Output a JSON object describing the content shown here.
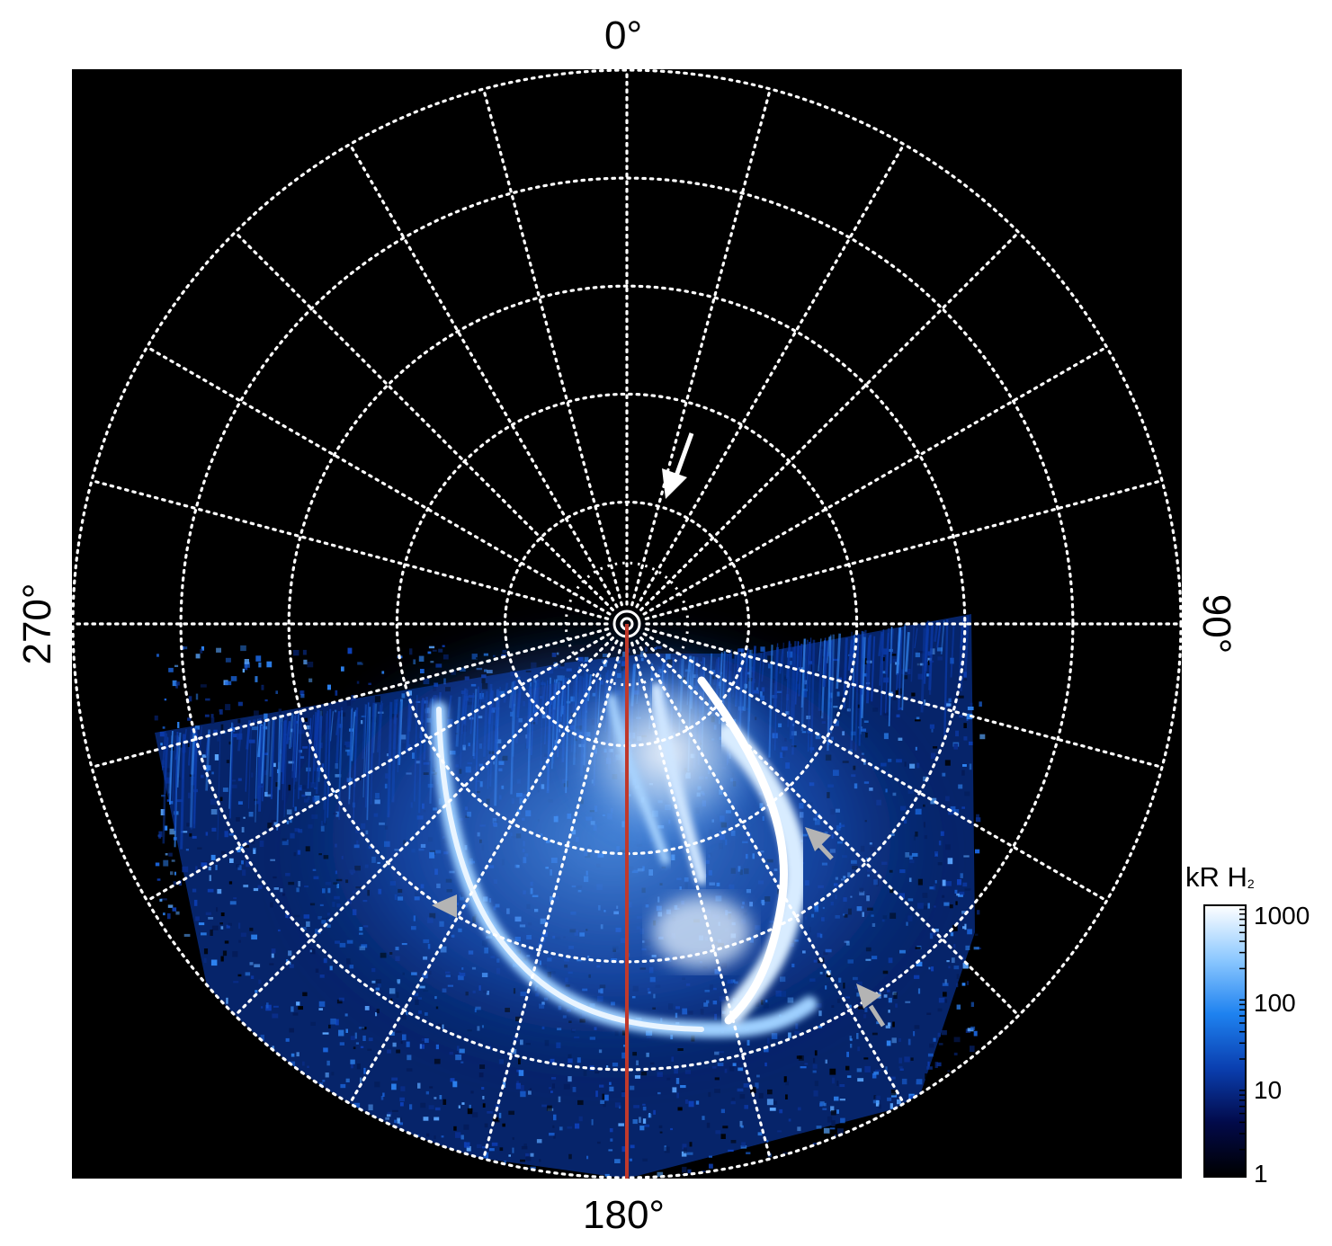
{
  "image_description": "",
  "grid": {
    "longitude_labels": {
      "top": "0°",
      "right": "90°",
      "bottom": "180°",
      "left": "270°"
    },
    "meridian_step_deg": 15,
    "latitude_ring_count": 5
  },
  "colorbar": {
    "title_main": "kR H",
    "title_sub": "2",
    "scale": "log",
    "range": [
      1,
      1000
    ],
    "ticks": [
      "1000",
      "100",
      "10",
      "1"
    ],
    "colors": [
      "#000000",
      "#020a4a",
      "#0a3fb0",
      "#1e82f0",
      "#8cc8ff",
      "#ffffff"
    ]
  },
  "overlays": {
    "meridian_line_color": "#c0392b",
    "primary_arrow_color": "#ffffff",
    "secondary_arrow_color": "#b4b4b4"
  },
  "colors": {
    "background": "#000000",
    "grid": "#ffffff"
  }
}
